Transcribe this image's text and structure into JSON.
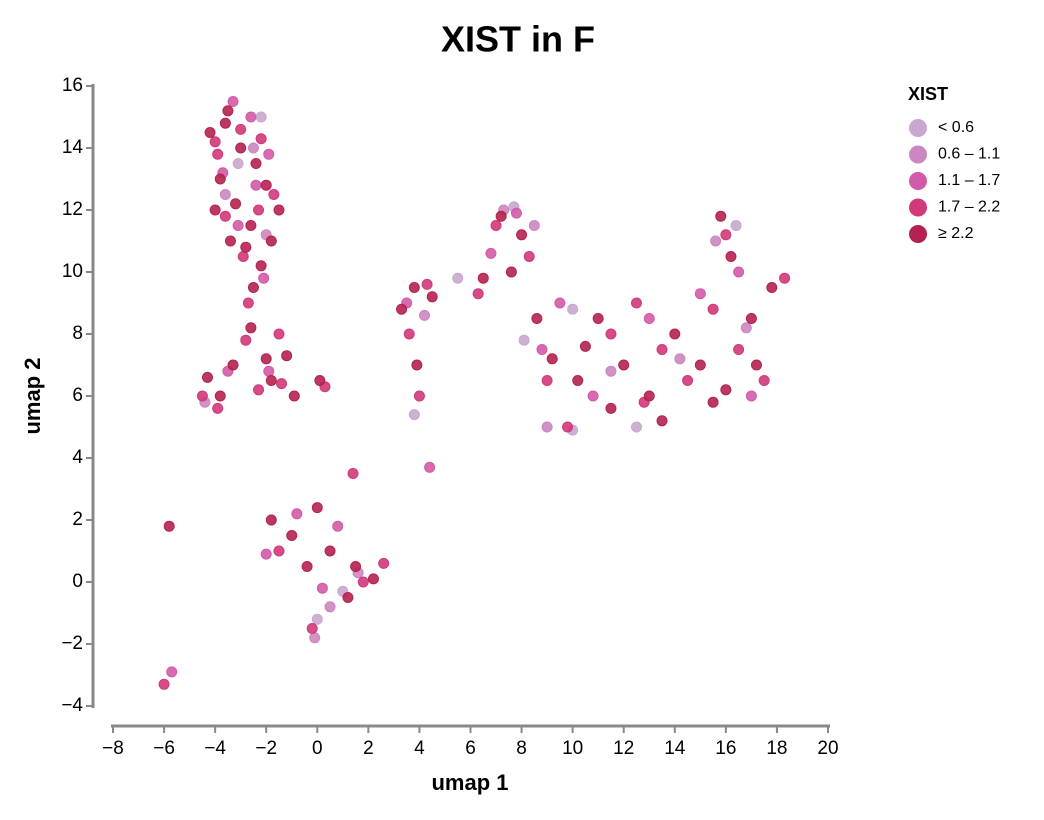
{
  "chart_data": {
    "type": "scatter",
    "title": "XIST in F",
    "x_label": "umap 1",
    "y_label": "umap 2",
    "legend_title": "XIST",
    "legend_position": "right",
    "xlim": [
      -8,
      20
    ],
    "ylim": [
      -4,
      16
    ],
    "xticks": [
      {
        "value": -8,
        "label": "−8"
      },
      {
        "value": -6,
        "label": "−6"
      },
      {
        "value": -4,
        "label": "−4"
      },
      {
        "value": -2,
        "label": "−2"
      },
      0,
      2,
      4,
      6,
      8,
      10,
      12,
      14,
      16,
      18,
      20
    ],
    "yticks": [
      {
        "value": -4,
        "label": "−4"
      },
      {
        "value": -2,
        "label": "−2"
      },
      0,
      2,
      4,
      6,
      8,
      10,
      12,
      14,
      16
    ],
    "series": [
      {
        "name": "< 0.6",
        "color": "#c9a7d0",
        "x": [
          -2.2,
          -3.1,
          5.5,
          7.7,
          8.1,
          10.0,
          12.5,
          16.4,
          10.0,
          0.0,
          1.0,
          3.8
        ],
        "y": [
          15.0,
          13.5,
          9.8,
          12.1,
          7.8,
          4.9,
          5.0,
          11.5,
          8.8,
          -1.2,
          -0.3,
          5.4
        ]
      },
      {
        "name": "0.6 – 1.1",
        "color": "#cc86c0",
        "x": [
          -2.5,
          -3.6,
          -2.0,
          4.2,
          7.3,
          8.5,
          11.5,
          14.2,
          16.8,
          15.6,
          9.0,
          0.5,
          1.6,
          -0.1,
          -4.4
        ],
        "y": [
          14.0,
          12.5,
          11.2,
          8.6,
          12.0,
          11.5,
          6.8,
          7.2,
          8.2,
          11.0,
          5.0,
          -0.8,
          0.3,
          -1.8,
          5.8
        ]
      },
      {
        "name": "1.1 – 1.7",
        "color": "#d35aa8",
        "x": [
          -3.3,
          -2.6,
          -1.9,
          -3.7,
          -2.4,
          -3.1,
          -2.1,
          -3.5,
          -1.9,
          3.5,
          7.8,
          6.8,
          8.8,
          10.8,
          13.0,
          15.0,
          17.0,
          16.5,
          9.5,
          -2.0,
          0.8,
          0.2,
          -0.8,
          4.4,
          -5.7
        ],
        "y": [
          15.5,
          15.0,
          13.8,
          13.2,
          12.8,
          11.5,
          9.8,
          6.8,
          6.8,
          9.0,
          11.9,
          10.6,
          7.5,
          6.0,
          8.5,
          9.3,
          6.0,
          10.0,
          9.0,
          0.9,
          1.8,
          -0.2,
          2.2,
          3.7,
          -2.9
        ]
      },
      {
        "name": "1.7 – 2.2",
        "color": "#d0397a",
        "x": [
          -3.9,
          -3.0,
          -2.2,
          -1.7,
          -3.6,
          -2.9,
          -2.3,
          -4.0,
          -2.7,
          -2.8,
          -2.3,
          -4.5,
          -3.9,
          -1.5,
          -1.4,
          0.3,
          4.0,
          3.6,
          4.3,
          7.0,
          8.3,
          6.3,
          9.0,
          9.8,
          11.5,
          12.5,
          13.5,
          14.5,
          15.5,
          16.5,
          17.5,
          18.3,
          16.0,
          12.8,
          -1.5,
          -0.2,
          1.8,
          2.6,
          1.4,
          -6.0
        ],
        "y": [
          13.8,
          14.6,
          14.3,
          12.5,
          11.8,
          10.5,
          12.0,
          14.2,
          9.0,
          7.8,
          6.2,
          6.0,
          5.6,
          8.0,
          6.4,
          6.3,
          6.0,
          8.0,
          9.6,
          11.5,
          10.5,
          9.3,
          6.5,
          5.0,
          8.0,
          9.0,
          7.5,
          6.5,
          8.8,
          7.5,
          6.5,
          9.8,
          11.2,
          5.8,
          1.0,
          -1.5,
          0.0,
          0.6,
          3.5,
          -3.3
        ]
      },
      {
        "name": "≥ 2.2",
        "color": "#b42250",
        "x": [
          -4.2,
          -3.5,
          -3.0,
          -2.4,
          -2.0,
          -1.5,
          -3.8,
          -3.2,
          -2.6,
          -1.8,
          -4.0,
          -3.4,
          -2.8,
          -2.2,
          -3.6,
          -2.5,
          -2.6,
          -2.0,
          -4.3,
          -3.8,
          -3.3,
          -1.8,
          -1.2,
          -0.9,
          0.1,
          3.3,
          3.8,
          4.5,
          3.9,
          6.5,
          7.2,
          8.0,
          7.6,
          8.6,
          9.2,
          10.2,
          11.0,
          12.0,
          13.0,
          14.0,
          15.0,
          16.0,
          17.0,
          17.8,
          11.5,
          13.5,
          15.5,
          17.2,
          16.2,
          15.8,
          10.5,
          -1.8,
          -1.0,
          0.0,
          0.5,
          1.5,
          2.2,
          -0.4,
          1.2,
          -5.8
        ],
        "y": [
          14.5,
          15.2,
          14.0,
          13.5,
          12.8,
          12.0,
          13.0,
          12.2,
          11.5,
          11.0,
          12.0,
          11.0,
          10.8,
          10.2,
          14.8,
          9.5,
          8.2,
          7.2,
          6.6,
          6.0,
          7.0,
          6.5,
          7.3,
          6.0,
          6.5,
          8.8,
          9.5,
          9.2,
          7.0,
          9.8,
          11.8,
          11.2,
          10.0,
          8.5,
          7.2,
          6.5,
          8.5,
          7.0,
          6.0,
          8.0,
          7.0,
          6.2,
          8.5,
          9.5,
          5.6,
          5.2,
          5.8,
          7.0,
          10.5,
          11.8,
          7.6,
          2.0,
          1.5,
          2.4,
          1.0,
          0.5,
          0.1,
          0.5,
          -0.5,
          1.8
        ]
      }
    ]
  }
}
